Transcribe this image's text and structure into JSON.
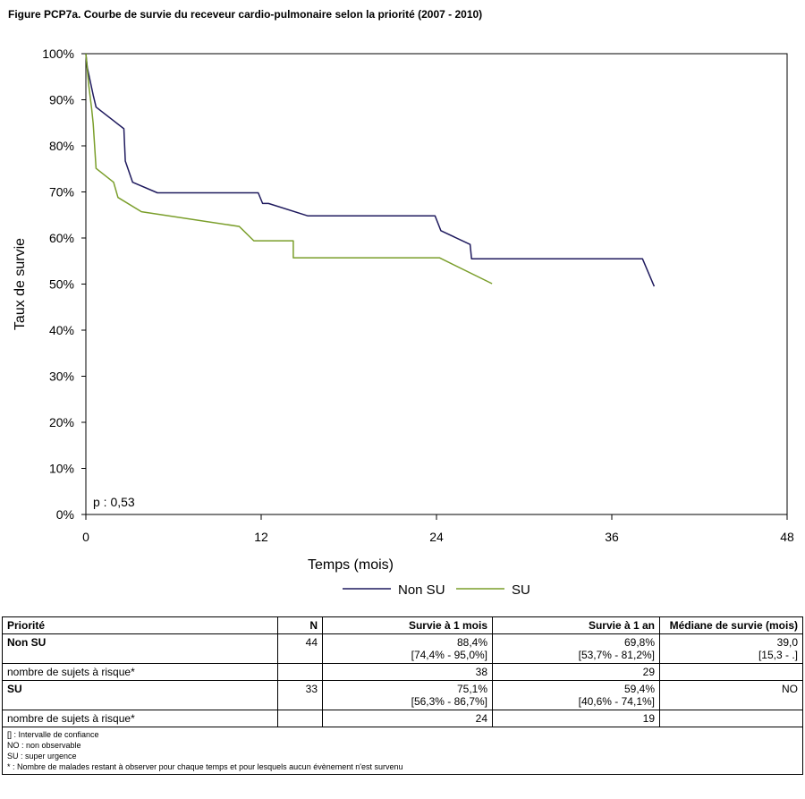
{
  "title": "Figure PCP7a. Courbe de survie du receveur cardio-pulmonaire selon la priorité (2007 - 2010)",
  "chart_data": {
    "type": "line",
    "xlabel": "Temps (mois)",
    "ylabel": "Taux de survie",
    "xlim": [
      0,
      48
    ],
    "ylim": [
      0,
      100
    ],
    "x_ticks": [
      "0",
      "12",
      "24",
      "36",
      "48"
    ],
    "y_ticks": [
      "0%",
      "10%",
      "20%",
      "30%",
      "40%",
      "50%",
      "60%",
      "70%",
      "80%",
      "90%",
      "100%"
    ],
    "annotation": "p : 0,53",
    "legend_position": "bottom",
    "series": [
      {
        "name": "Non SU",
        "color": "#1f1a5e",
        "points": [
          [
            0,
            100
          ],
          [
            0.1,
            97
          ],
          [
            0.3,
            94
          ],
          [
            0.5,
            91
          ],
          [
            0.7,
            88.4
          ],
          [
            2.6,
            83.7
          ],
          [
            2.7,
            76.7
          ],
          [
            3.2,
            72.1
          ],
          [
            4.9,
            69.8
          ],
          [
            11.8,
            69.8
          ],
          [
            12.1,
            67.5
          ],
          [
            12.5,
            67.5
          ],
          [
            15.2,
            64.8
          ],
          [
            23.9,
            64.8
          ],
          [
            24.3,
            61.6
          ],
          [
            26.3,
            58.6
          ],
          [
            26.4,
            55.5
          ],
          [
            38.1,
            55.5
          ],
          [
            38.9,
            49.5
          ]
        ]
      },
      {
        "name": "SU",
        "color": "#7a9e2a",
        "points": [
          [
            0,
            100
          ],
          [
            0.2,
            93
          ],
          [
            0.4,
            88
          ],
          [
            0.5,
            84.8
          ],
          [
            0.7,
            75.1
          ],
          [
            1.9,
            72.1
          ],
          [
            2.2,
            68.8
          ],
          [
            3.8,
            65.7
          ],
          [
            10.5,
            62.5
          ],
          [
            11.5,
            59.4
          ],
          [
            14.2,
            59.4
          ],
          [
            14.2,
            55.7
          ],
          [
            24.2,
            55.7
          ],
          [
            27.8,
            50.1
          ]
        ]
      }
    ]
  },
  "table": {
    "headers": [
      "Priorité",
      "N",
      "Survie à 1 mois",
      "Survie à 1 an",
      "Médiane de survie (mois)"
    ],
    "rows": [
      {
        "label": "Non SU",
        "n": "44",
        "m1": "88,4%",
        "m1_ci": "[74,4% - 95,0%]",
        "y1": "69,8%",
        "y1_ci": "[53,7% - 81,2%]",
        "med": "39,0",
        "med_ci": "[15,3 - .]"
      },
      {
        "label": "nombre de sujets à risque*",
        "n": "",
        "m1": "38",
        "m1_ci": "",
        "y1": "29",
        "y1_ci": "",
        "med": "",
        "med_ci": ""
      },
      {
        "label": "SU",
        "n": "33",
        "m1": "75,1%",
        "m1_ci": "[56,3% - 86,7%]",
        "y1": "59,4%",
        "y1_ci": "[40,6% - 74,1%]",
        "med": "NO",
        "med_ci": ""
      },
      {
        "label": "nombre de sujets à risque*",
        "n": "",
        "m1": "24",
        "m1_ci": "",
        "y1": "19",
        "y1_ci": "",
        "med": "",
        "med_ci": ""
      }
    ],
    "notes": [
      "[] : Intervalle de confiance",
      "NO : non observable",
      "SU : super urgence",
      "* : Nombre de malades restant à observer pour chaque temps et pour lesquels aucun évènement n'est survenu"
    ]
  }
}
